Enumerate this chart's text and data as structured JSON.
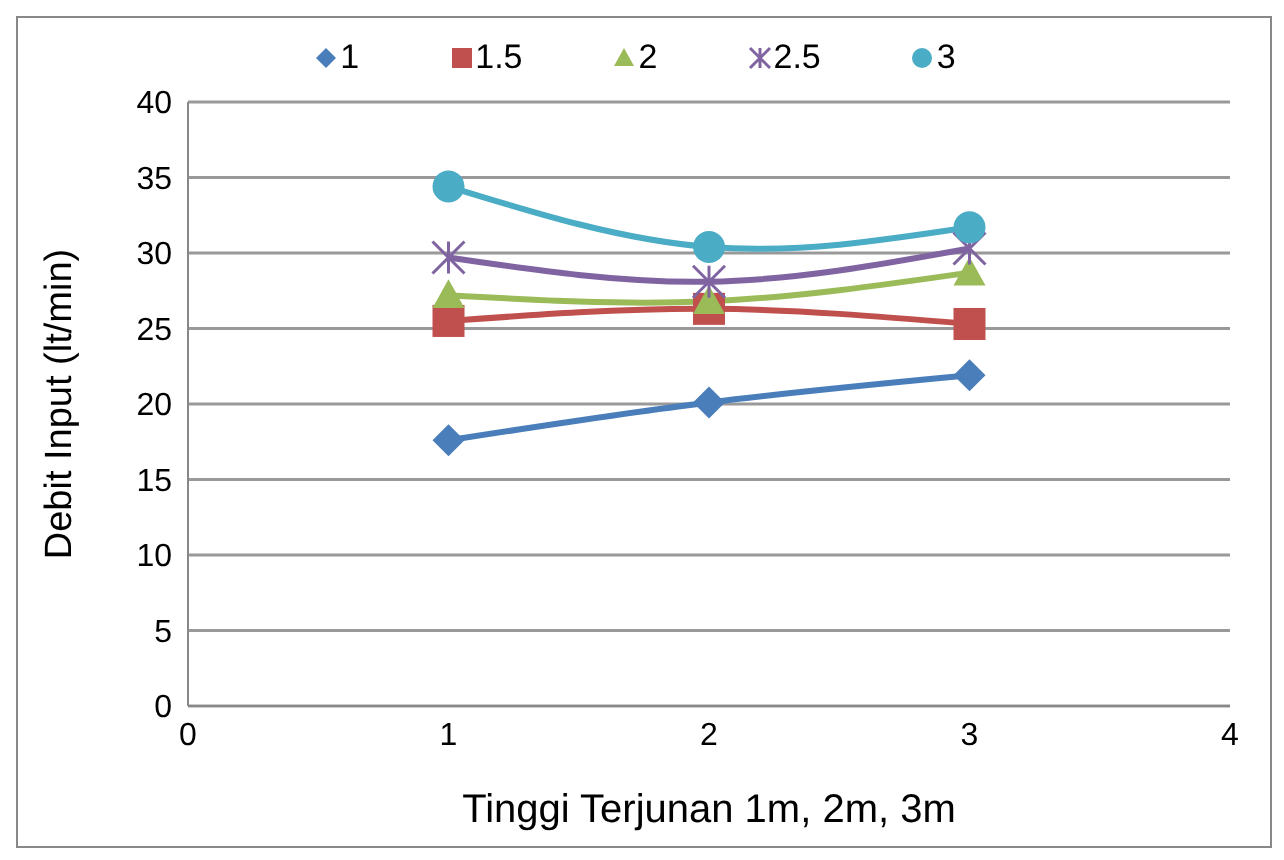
{
  "chart_data": {
    "type": "line",
    "xlabel": "Tinggi Terjunan 1m, 2m, 3m",
    "ylabel": "Debit Input (lt/min)",
    "x": [
      1,
      2,
      3
    ],
    "xlim": [
      0,
      4
    ],
    "xticks": [
      0,
      1,
      2,
      3,
      4
    ],
    "ylim": [
      0,
      40
    ],
    "yticks": [
      0,
      5,
      10,
      15,
      20,
      25,
      30,
      35,
      40
    ],
    "grid": "y",
    "legend": "top",
    "series": [
      {
        "name": "1",
        "color": "#4a7ebb",
        "marker": "diamond",
        "values": [
          17.6,
          20.1,
          21.9
        ]
      },
      {
        "name": "1.5",
        "color": "#c0504d",
        "marker": "square",
        "values": [
          25.5,
          26.3,
          25.3
        ]
      },
      {
        "name": "2",
        "color": "#9bbb59",
        "marker": "triangle",
        "values": [
          27.2,
          26.8,
          28.7
        ]
      },
      {
        "name": "2.5",
        "color": "#8064a2",
        "marker": "cross",
        "values": [
          29.7,
          28.1,
          30.3
        ]
      },
      {
        "name": "3",
        "color": "#4bacc6",
        "marker": "circle",
        "values": [
          34.4,
          30.4,
          31.7
        ]
      }
    ]
  }
}
